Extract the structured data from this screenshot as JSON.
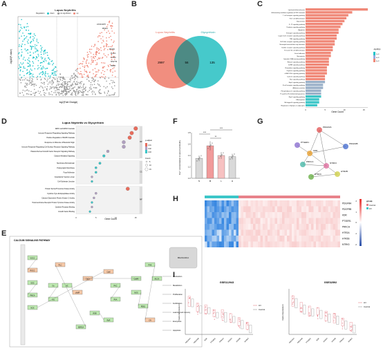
{
  "panels": {
    "A": {
      "label": "A",
      "title": "Lupus Nephritis",
      "xlabel": "log2(Fold Change)",
      "ylabel": "-log10(P-value)",
      "legend_title": "Regulation",
      "legend_items": [
        "down",
        "not significant",
        "up"
      ],
      "gene_labels": [
        "LOC441178",
        "MS4A1",
        "MS1R1",
        "PLAU1",
        "CYP19",
        "SHLHT0",
        "PRDM"
      ],
      "colors": {
        "down": "#1fc4c9",
        "ns": "#9a9a9a",
        "up": "#f08878"
      },
      "chart_data": {
        "type": "scatter",
        "xlabel": "log2(Fold Change)",
        "ylabel": "-log10(P-value)",
        "series": [
          {
            "name": "down",
            "color": "#1fc4c9"
          },
          {
            "name": "not significant",
            "color": "#9a9a9a"
          },
          {
            "name": "up",
            "color": "#f08878"
          }
        ]
      }
    },
    "B": {
      "label": "B",
      "left_title": "Lupus Nephritis",
      "right_title": "Glycyrrhizin",
      "left_only": "2997",
      "overlap": "56",
      "right_only": "135",
      "left_color": "#f08878",
      "right_color": "#3cc6c8",
      "overlap_color": "#4d8a84"
    },
    "C": {
      "label": "C",
      "xlabel": "Gene Count",
      "legend_title": "-log10(p)",
      "legend_ticks": [
        "2e-8",
        "4e-8",
        "6e-8"
      ],
      "chart_data": {
        "type": "bar",
        "orientation": "horizontal",
        "xlabel": "Gene Count",
        "categories": [
          "Lipid and atherosclerosis",
          "Inflammatory mediator regulation of TRP channels",
          "T cell receptor signaling pathway",
          "Th17 cell differentiation",
          "Gap junction",
          "IL-17 signaling pathway",
          "Prolactin signaling pathway",
          "Apoptosis",
          "Estrogen signaling pathway",
          "C-type lectin receptor signaling pathway",
          "TNF signaling pathway",
          "NOD-like receptor signaling pathway",
          "Neutrophil extracellular trap formation",
          "Toll-like receptor signaling pathway",
          "Th1 and Th2 cell differentiation",
          "Focal adhesion",
          "Necroptosis",
          "Cytosolic DNA-sensing pathway",
          "Relaxin signaling pathway",
          "GnRH signaling pathway",
          "Chemokine signaling pathway",
          "Oxytocin signaling pathway",
          "cGMP-PKG signaling pathway",
          "Calcium signaling pathway",
          "Ras signaling pathway",
          "Rap1 signaling pathway",
          "B cell receptor signaling pathway",
          "Adherens junction",
          "Phospholipase D signaling pathway",
          "Fc gamma R-mediated phagocytosis",
          "Rap1 signaling pathway",
          "Efferocytosis",
          "NF-kappa B signaling pathway",
          "Regulation of lipolysis in adipocytes"
        ],
        "values": [
          16,
          12,
          11,
          10.5,
          10,
          9.5,
          9,
          8.5,
          8.5,
          8,
          8,
          7.5,
          7.5,
          7,
          7,
          6.5,
          6.5,
          6,
          6,
          6,
          5.5,
          5.5,
          5.5,
          5,
          5,
          5,
          4.5,
          4.5,
          4,
          4,
          4,
          3.5,
          3.5,
          3
        ],
        "ticks": [
          0,
          5,
          10,
          15
        ]
      }
    },
    "D": {
      "label": "D",
      "title": "Lupus Nephritis vs Glycyrrhizin",
      "xlabel": "Gene Count",
      "legend_title": "p.adjust",
      "legend_ticks": [
        "0.01",
        "0.02",
        "0.03"
      ],
      "size_title": "Count",
      "size_values": [
        "5",
        "10",
        "15"
      ],
      "groups": [
        "BP",
        "CC",
        "MF"
      ],
      "chart_data": {
        "type": "scatter",
        "xlabel": "Gene Count",
        "ticks": [
          0,
          5,
          10,
          15
        ],
        "categories": [
          "ERK1 and ERK2 Cascade",
          "Immune Response-Regulating Signaling Pathway",
          "Positive Regulation of MAPK Cascade",
          "Response to Molecule of Bacterial Origin",
          "Immune Response-Regulating Cell Surface Receptor Signaling Pathway",
          "Platelet-Derived Growth Factor Receptor Signaling Pathway",
          "Calcium-Mediated Signaling",
          "Membrane Microdomain",
          "Postsynaptic Membrane",
          "Focal Adhesion",
          "Cytoplasmic Vesicle Lumen",
          "Cell-Substrate Junction",
          "Protein Serine/Threonine Kinase Activity",
          "Cytokine Type Endopeptidase Activity",
          "Calcium-Dependent Protein Kinase C Activity",
          "Transmembrane Receptor Protein Tyrosine Kinase Activity",
          "Cytokine Receptor Binding",
          "Growth Factor Binding"
        ],
        "values": [
          15,
          14,
          13.5,
          12,
          12,
          8,
          7,
          6,
          5,
          5,
          4,
          4,
          13,
          5,
          4.5,
          4,
          4,
          3.5
        ],
        "adjp": [
          0.01,
          0.01,
          0.012,
          0.015,
          0.015,
          0.02,
          0.025,
          0.03,
          0.028,
          0.03,
          0.02,
          0.025,
          0.01,
          0.02,
          0.022,
          0.025,
          0.02,
          0.03
        ]
      }
    },
    "E": {
      "label": "E",
      "title": "CALCIUM SIGNALING PATHWAY",
      "nodes": [
        "VOCC",
        "ROCC",
        "SOC",
        "PMCA",
        "NCX",
        "CaM",
        "PKC",
        "PKA",
        "CaMK",
        "Ca2+",
        "IP3R",
        "RyR",
        "SERCA",
        "PLC",
        "Gs",
        "Gq",
        "AC",
        "cAMP",
        "NOS",
        "PDE1",
        "PHK",
        "CN",
        "MLCK",
        "Mitochondrion"
      ],
      "side_labels": [
        "Contraction",
        "Metabolism",
        "Proliferation",
        "Fertilization",
        "Learning and memory",
        "Exocytosis",
        "Apoptosis"
      ]
    },
    "F": {
      "label": "F",
      "ylabel": "Ca²⁺ concentration in serum (mmol/L)",
      "sig": [
        "***",
        "**",
        "***"
      ],
      "chart_data": {
        "type": "bar",
        "categories": [
          "N",
          "M",
          "L",
          "H"
        ],
        "values": [
          1.35,
          1.57,
          1.4,
          1.38
        ],
        "errors": [
          0.05,
          0.08,
          0.06,
          0.05
        ],
        "ylim": [
          1.0,
          1.8
        ],
        "ticks": [
          1.0,
          1.2,
          1.4,
          1.6,
          1.8
        ],
        "colors": [
          "#d9d9d9",
          "#f19a9a",
          "#f7c1c1",
          "#d9d9d9"
        ]
      }
    },
    "G": {
      "label": "G",
      "genes": [
        "PDGFRA",
        "PDGFRB",
        "PTGER1",
        "KDR",
        "PRKCA",
        "NTRK3",
        "HTR2A",
        "HTR2B"
      ]
    },
    "H": {
      "label": "H",
      "genes": [
        "PDGFRA",
        "PDGFRB",
        "KDR",
        "PTGER1",
        "PRKCA",
        "HTR2A",
        "HTR2B",
        "NTRK3"
      ],
      "legend_title": "group",
      "groups": [
        "Control",
        "LN"
      ],
      "group_colors": [
        "#e8828b",
        "#3cc6c8"
      ],
      "scale_ticks": [
        "2",
        "1",
        "0",
        "-1",
        "-2"
      ]
    },
    "I": {
      "label": "I",
      "left_title": "GSE112943",
      "right_title": "GSE32592",
      "ylabel": "Gene Expression",
      "legend": [
        "LN",
        "Control"
      ],
      "legend_colors": [
        "#e8828b",
        "#9a9a9a"
      ],
      "left_genes": [
        "PDGFRA",
        "PDGFRB",
        "KDR",
        "PTGER1",
        "PRKCA",
        "HTR2A",
        "HTR2B",
        "NTRK3"
      ],
      "right_genes": [
        "PDGFRA",
        "PDGFRB",
        "PTGER1",
        "KDR",
        "HTR2A",
        "HTR2B",
        "PRKCA",
        "NTRK3"
      ]
    }
  }
}
